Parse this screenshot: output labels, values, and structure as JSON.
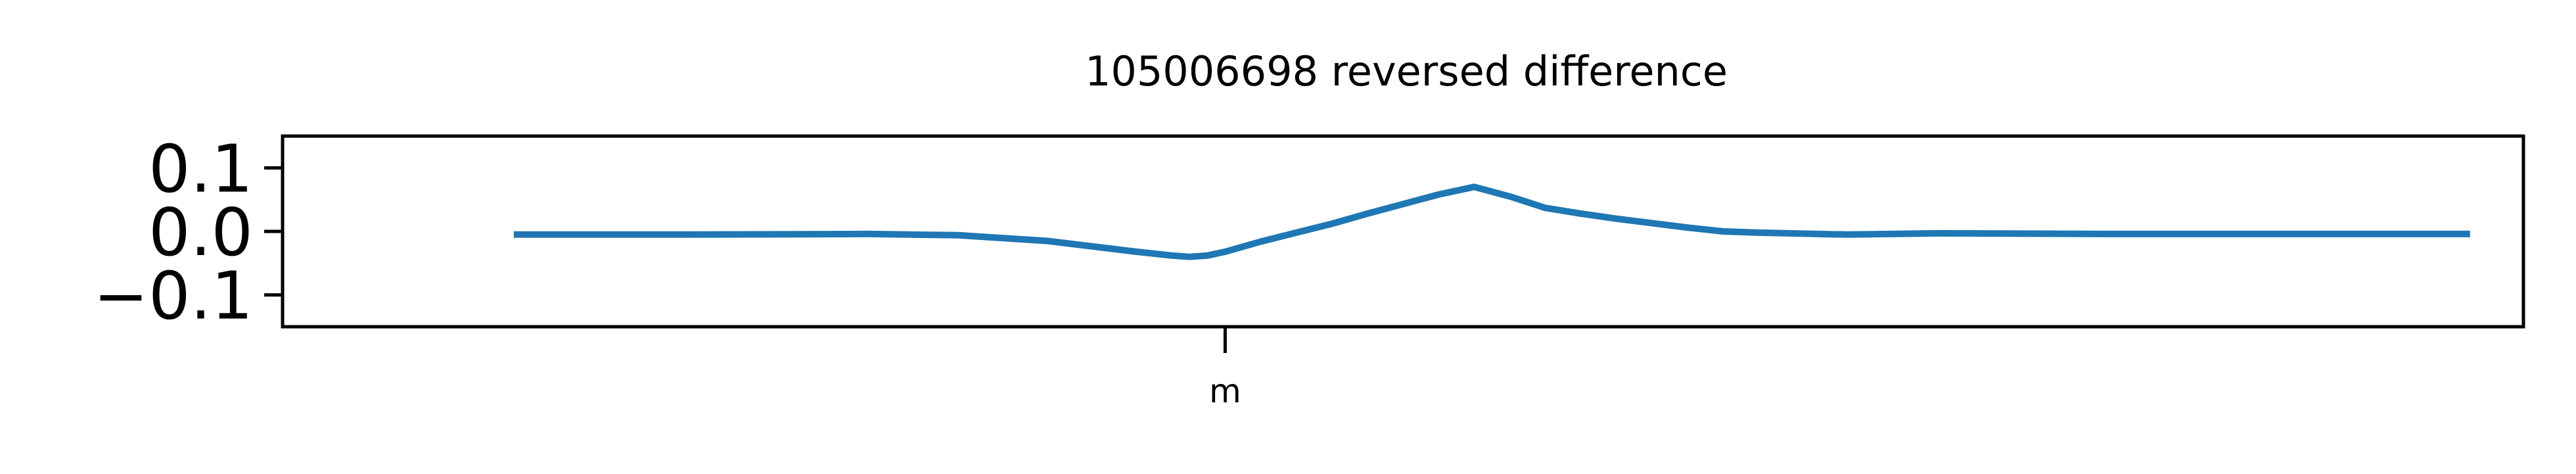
{
  "chart_data": {
    "type": "line",
    "title": "105006698 reversed difference",
    "xlabel": "",
    "ylabel": "",
    "ylim": [
      -0.15,
      0.15
    ],
    "yticks": [
      0.1,
      0.0,
      -0.1
    ],
    "ytick_labels": [
      "0.1",
      "0.0",
      "−0.1"
    ],
    "xlim": [
      -0.53,
      0.73
    ],
    "xticks": [
      0.0
    ],
    "xtick_labels": [
      "m"
    ],
    "grid": false,
    "series_color": "#1f77b4",
    "series": [
      {
        "x": [
          -0.4,
          -0.3,
          -0.2,
          -0.15,
          -0.1,
          -0.05,
          -0.03,
          -0.02,
          -0.01,
          0.0,
          0.01,
          0.02,
          0.04,
          0.06,
          0.08,
          0.1,
          0.12,
          0.14,
          0.16,
          0.18,
          0.2,
          0.22,
          0.24,
          0.26,
          0.28,
          0.3,
          0.35,
          0.4,
          0.5,
          0.6,
          0.7
        ],
        "y": [
          -0.005,
          -0.005,
          -0.004,
          -0.006,
          -0.015,
          -0.032,
          -0.038,
          -0.04,
          -0.038,
          -0.032,
          -0.024,
          -0.016,
          -0.002,
          0.012,
          0.028,
          0.043,
          0.058,
          0.07,
          0.055,
          0.037,
          0.028,
          0.02,
          0.013,
          0.006,
          0.0,
          -0.002,
          -0.005,
          -0.003,
          -0.004,
          -0.004,
          -0.004
        ]
      }
    ]
  }
}
